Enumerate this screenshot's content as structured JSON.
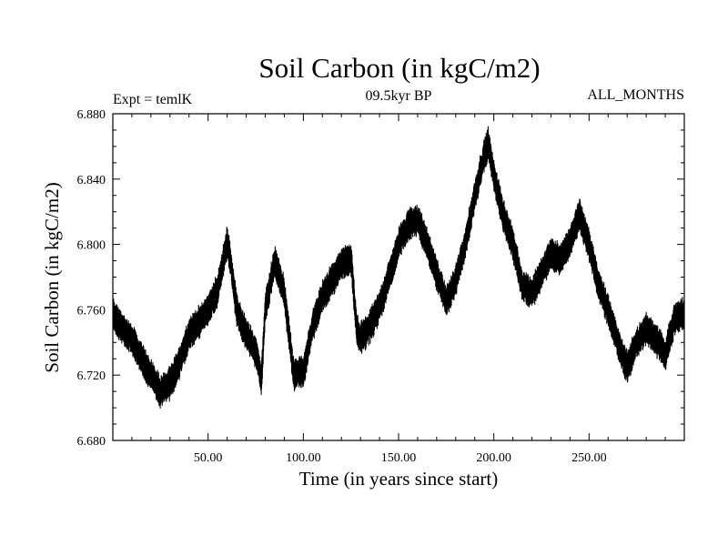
{
  "chart_data": {
    "type": "line",
    "title": "Soil Carbon (in kgC/m2)",
    "subtitle_left": "Expt = temlK",
    "subtitle_center": "09.5kyr BP",
    "subtitle_right": "ALL_MONTHS",
    "xlabel": "Time (in years since start)",
    "ylabel": "Soil Carbon (in kgC/m2)",
    "xlim": [
      0,
      300
    ],
    "ylim": [
      6.68,
      6.88
    ],
    "xticks": [
      50,
      100,
      150,
      200,
      250
    ],
    "xtick_labels": [
      "50.00",
      "100.00",
      "150.00",
      "200.00",
      "250.00"
    ],
    "yticks": [
      6.68,
      6.72,
      6.76,
      6.8,
      6.84,
      6.88
    ],
    "ytick_labels": [
      "6.680",
      "6.720",
      "6.760",
      "6.800",
      "6.840",
      "6.880"
    ],
    "series": [
      {
        "name": "Soil Carbon",
        "color": "#000000",
        "x": [
          0,
          5,
          10,
          15,
          20,
          25,
          30,
          35,
          40,
          45,
          50,
          55,
          58,
          60,
          62,
          65,
          70,
          75,
          78,
          80,
          85,
          90,
          95,
          100,
          105,
          110,
          115,
          120,
          125,
          128,
          130,
          135,
          140,
          145,
          150,
          155,
          160,
          165,
          170,
          175,
          180,
          185,
          190,
          195,
          197,
          200,
          205,
          210,
          215,
          220,
          225,
          230,
          235,
          240,
          245,
          250,
          255,
          260,
          265,
          270,
          275,
          280,
          285,
          290,
          295,
          300
        ],
        "values": [
          6.758,
          6.748,
          6.742,
          6.73,
          6.72,
          6.71,
          6.715,
          6.728,
          6.745,
          6.752,
          6.76,
          6.772,
          6.79,
          6.802,
          6.788,
          6.76,
          6.745,
          6.735,
          6.718,
          6.76,
          6.79,
          6.77,
          6.72,
          6.722,
          6.75,
          6.768,
          6.778,
          6.788,
          6.792,
          6.748,
          6.742,
          6.75,
          6.762,
          6.78,
          6.8,
          6.812,
          6.815,
          6.8,
          6.782,
          6.765,
          6.778,
          6.8,
          6.83,
          6.855,
          6.862,
          6.842,
          6.818,
          6.8,
          6.775,
          6.77,
          6.782,
          6.795,
          6.79,
          6.802,
          6.818,
          6.8,
          6.775,
          6.76,
          6.74,
          6.725,
          6.74,
          6.748,
          6.742,
          6.732,
          6.755,
          6.758
        ]
      }
    ]
  }
}
